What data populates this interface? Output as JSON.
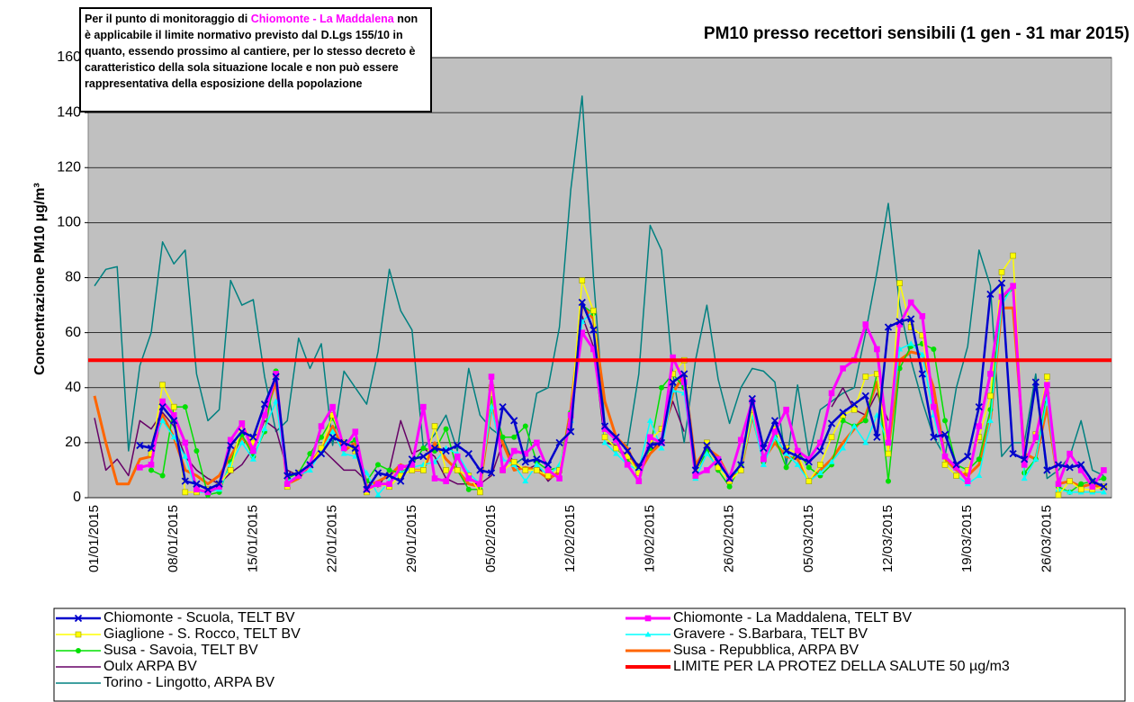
{
  "chart_data": {
    "type": "line",
    "title": "PM10 presso recettori sensibili (1 gen - 31 mar 2015)",
    "annotation": [
      "Per il punto di monitoraggio di ",
      "Chiomonte - La Maddalena",
      " non è applicabile il limite normativo previsto dal D.Lgs 155/10 in quanto, essendo prossimo al cantiere, per lo stesso decreto è caratteristico della sola situazione locale e non può essere rappresentativa della esposizione della popolazione"
    ],
    "annotation_highlight_color": "#ff00ff",
    "ylabel": "Concentrazione PM10 µg/m³",
    "ylim": [
      0,
      160
    ],
    "yticks": [
      0,
      20,
      40,
      60,
      80,
      100,
      120,
      140,
      160
    ],
    "grid": true,
    "categories": [
      "01/01/2015",
      null,
      null,
      null,
      null,
      null,
      null,
      "08/01/2015",
      null,
      null,
      null,
      null,
      null,
      null,
      "15/01/2015",
      null,
      null,
      null,
      null,
      null,
      null,
      "22/01/2015",
      null,
      null,
      null,
      null,
      null,
      null,
      "29/01/2015",
      null,
      null,
      null,
      null,
      null,
      null,
      "05/02/2015",
      null,
      null,
      null,
      null,
      null,
      null,
      "12/02/2015",
      null,
      null,
      null,
      null,
      null,
      null,
      "19/02/2015",
      null,
      null,
      null,
      null,
      null,
      null,
      "26/02/2015",
      null,
      null,
      null,
      null,
      null,
      null,
      "05/03/2015",
      null,
      null,
      null,
      null,
      null,
      null,
      "12/03/2015",
      null,
      null,
      null,
      null,
      null,
      null,
      "19/03/2015",
      null,
      null,
      null,
      null,
      null,
      null,
      "26/03/2015",
      null,
      null,
      null,
      null,
      null
    ],
    "series": [
      {
        "name": "Chiomonte - Scuola, TELT BV",
        "color": "#0000cc",
        "marker": "x",
        "width": 2.5,
        "values": [
          null,
          null,
          null,
          null,
          19,
          18,
          33,
          28,
          6,
          5,
          3,
          5,
          19,
          24,
          22,
          34,
          44,
          8,
          9,
          12,
          16,
          22,
          20,
          18,
          3,
          9,
          8,
          6,
          14,
          15,
          18,
          17,
          19,
          16,
          10,
          9,
          33,
          28,
          13,
          14,
          12,
          20,
          24,
          71,
          61,
          26,
          22,
          17,
          11,
          19,
          20,
          42,
          45,
          10,
          19,
          13,
          7,
          12,
          36,
          18,
          28,
          17,
          15,
          13,
          17,
          27,
          31,
          34,
          37,
          22,
          62,
          64,
          65,
          45,
          22,
          23,
          12,
          15,
          33,
          74,
          78,
          16,
          14,
          42,
          10,
          12,
          11,
          12,
          6,
          4
        ]
      },
      {
        "name": "Chiomonte - La Maddalena, TELT BV",
        "color": "#ff00ff",
        "marker": "square",
        "width": 3,
        "values": [
          null,
          null,
          null,
          null,
          11,
          12,
          35,
          30,
          20,
          3,
          2,
          4,
          21,
          27,
          17,
          30,
          45,
          5,
          8,
          12,
          26,
          33,
          18,
          24,
          3,
          5,
          5,
          11,
          12,
          33,
          7,
          6,
          15,
          7,
          5,
          44,
          10,
          17,
          16,
          20,
          10,
          7,
          30,
          60,
          54,
          25,
          21,
          12,
          6,
          22,
          20,
          51,
          42,
          8,
          10,
          14,
          7,
          21,
          35,
          14,
          24,
          32,
          17,
          14,
          20,
          38,
          47,
          50,
          63,
          54,
          20,
          63,
          71,
          66,
          33,
          15,
          11,
          6,
          26,
          45,
          73,
          77,
          12,
          22,
          41,
          5,
          16,
          10,
          4,
          10
        ]
      },
      {
        "name": "Giaglione - S. Rocco, TELT BV",
        "color": "#ffff00",
        "marker": "square",
        "width": 1.5,
        "values": [
          null,
          null,
          null,
          null,
          null,
          16,
          41,
          33,
          2,
          2,
          3,
          5,
          10,
          27,
          20,
          30,
          45,
          4,
          9,
          12,
          18,
          30,
          20,
          17,
          2,
          5,
          4,
          8,
          10,
          10,
          26,
          10,
          10,
          8,
          2,
          40,
          10,
          13,
          10,
          10,
          8,
          10,
          30,
          79,
          68,
          22,
          18,
          15,
          9,
          21,
          25,
          45,
          50,
          8,
          20,
          11,
          6,
          10,
          32,
          14,
          25,
          18,
          16,
          6,
          12,
          22,
          30,
          32,
          44,
          45,
          16,
          78,
          62,
          59,
          33,
          12,
          8,
          10,
          22,
          37,
          82,
          88,
          12,
          23,
          44,
          1,
          6,
          3,
          3,
          4
        ]
      },
      {
        "name": "Gravere - S.Barbara, TELT BV",
        "color": "#00ffff",
        "marker": "triangle",
        "width": 1.5,
        "values": [
          null,
          null,
          null,
          null,
          null,
          17,
          28,
          22,
          15,
          2,
          2,
          3,
          12,
          20,
          14,
          25,
          35,
          6,
          8,
          10,
          17,
          24,
          16,
          15,
          9,
          1,
          6,
          9,
          11,
          12,
          13,
          18,
          16,
          9,
          5,
          33,
          14,
          12,
          6,
          12,
          8,
          12,
          28,
          64,
          68,
          20,
          16,
          12,
          10,
          28,
          18,
          39,
          38,
          7,
          16,
          11,
          8,
          10,
          30,
          12,
          22,
          16,
          12,
          6,
          9,
          13,
          18,
          26,
          20,
          30,
          20,
          54,
          56,
          52,
          30,
          12,
          8,
          5,
          8,
          28,
          70,
          77,
          7,
          14,
          36,
          3,
          2,
          2,
          2,
          2
        ]
      },
      {
        "name": "Susa - Savoia, TELT BV",
        "color": "#00e000",
        "marker": "circle",
        "width": 1.5,
        "values": [
          null,
          null,
          null,
          null,
          null,
          10,
          8,
          33,
          33,
          17,
          1,
          2,
          13,
          23,
          15,
          24,
          46,
          7,
          9,
          16,
          22,
          29,
          19,
          21,
          6,
          12,
          10,
          9,
          12,
          18,
          17,
          25,
          10,
          3,
          3,
          36,
          22,
          22,
          26,
          13,
          10,
          11,
          31,
          70,
          67,
          22,
          18,
          14,
          10,
          18,
          40,
          45,
          40,
          9,
          17,
          10,
          4,
          12,
          31,
          13,
          22,
          11,
          17,
          11,
          8,
          12,
          28,
          26,
          28,
          45,
          6,
          47,
          55,
          56,
          54,
          28,
          12,
          10,
          14,
          32,
          72,
          76,
          9,
          14,
          38,
          4,
          2,
          5,
          6,
          7
        ]
      },
      {
        "name": "Susa - Repubblica, ARPA BV",
        "color": "#ff6600",
        "width": 3,
        "values": [
          37,
          20,
          5,
          5,
          14,
          15,
          30,
          22,
          10,
          8,
          5,
          8,
          15,
          22,
          17,
          30,
          42,
          5,
          7,
          12,
          18,
          26,
          17,
          20,
          4,
          6,
          8,
          12,
          10,
          10,
          20,
          14,
          10,
          5,
          4,
          33,
          20,
          10,
          11,
          10,
          7,
          9,
          32,
          70,
          65,
          35,
          22,
          18,
          9,
          16,
          20,
          38,
          45,
          12,
          18,
          15,
          7,
          10,
          30,
          14,
          20,
          15,
          14,
          6,
          10,
          14,
          20,
          25,
          30,
          42,
          18,
          50,
          53,
          52,
          40,
          14,
          10,
          8,
          12,
          28,
          69,
          69,
          16,
          14,
          33,
          5,
          6,
          4,
          5,
          3
        ]
      },
      {
        "name": "Oulx ARPA BV",
        "color": "#660066",
        "width": 1.5,
        "values": [
          29,
          10,
          14,
          8,
          28,
          25,
          31,
          26,
          15,
          10,
          7,
          5,
          9,
          12,
          18,
          28,
          25,
          10,
          8,
          10,
          18,
          14,
          10,
          10,
          6,
          4,
          10,
          28,
          16,
          18,
          15,
          7,
          5,
          5,
          5,
          8,
          20,
          12,
          10,
          12,
          6,
          10,
          30,
          66,
          55,
          20,
          19,
          15,
          12,
          16,
          22,
          35,
          24,
          null,
          null,
          null,
          null,
          null,
          null,
          null,
          28,
          null,
          null,
          null,
          null,
          33,
          40,
          32,
          30,
          38,
          28,
          null,
          null,
          null,
          null,
          null,
          null,
          null,
          null,
          null,
          null,
          null,
          null,
          null,
          null,
          null,
          null,
          null,
          null,
          null
        ]
      },
      {
        "name": "LIMITE PER LA PROTEZ DELLA SALUTE 50 µg/m3",
        "color": "#ff0000",
        "width": 4,
        "value": 50
      },
      {
        "name": "Torino - Lingotto, ARPA BV",
        "color": "#008080",
        "width": 1.5,
        "values": [
          77,
          83,
          84,
          17,
          48,
          60,
          93,
          85,
          90,
          45,
          28,
          32,
          79,
          70,
          72,
          44,
          24,
          28,
          58,
          47,
          56,
          19,
          46,
          40,
          34,
          53,
          83,
          68,
          61,
          18,
          23,
          30,
          17,
          47,
          30,
          25,
          22,
          12,
          15,
          38,
          40,
          62,
          112,
          146,
          80,
          27,
          20,
          19,
          45,
          99,
          90,
          45,
          20,
          50,
          70,
          43,
          27,
          40,
          47,
          46,
          42,
          12,
          41,
          15,
          32,
          35,
          38,
          40,
          60,
          82,
          107,
          70,
          50,
          35,
          22,
          15,
          40,
          55,
          90,
          77,
          15,
          20,
          20,
          45,
          7,
          10,
          15,
          28,
          10,
          8
        ]
      }
    ]
  }
}
